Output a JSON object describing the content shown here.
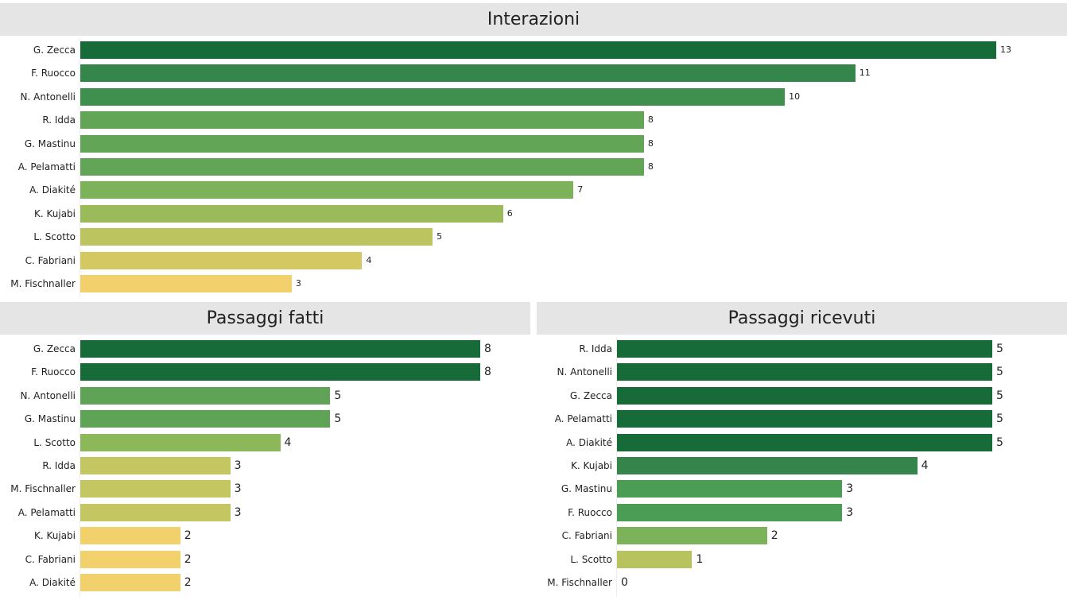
{
  "chart_data": [
    {
      "id": "top",
      "type": "bar",
      "orientation": "horizontal",
      "title": "Interazioni",
      "categories": [
        "G. Zecca",
        "F. Ruocco",
        "N. Antonelli",
        "R. Idda",
        "G. Mastinu",
        "A. Pelamatti",
        "A. Diakité",
        "K. Kujabi",
        "L. Scotto",
        "C. Fabriani",
        "M. Fischnaller"
      ],
      "values": [
        13,
        11,
        10,
        8,
        8,
        8,
        7,
        6,
        5,
        4,
        3
      ],
      "colors": [
        "#166b38",
        "#35864a",
        "#3f8f4e",
        "#63a556",
        "#63a556",
        "#63a556",
        "#7cb25a",
        "#9bbb5b",
        "#bbc45f",
        "#d3c862",
        "#f2d06b"
      ]
    },
    {
      "id": "left",
      "type": "bar",
      "orientation": "horizontal",
      "title": "Passaggi fatti",
      "categories": [
        "G. Zecca",
        "F. Ruocco",
        "N. Antonelli",
        "G. Mastinu",
        "L. Scotto",
        "R. Idda",
        "M. Fischnaller",
        "A. Pelamatti",
        "K. Kujabi",
        "C. Fabriani",
        "A. Diakité"
      ],
      "values": [
        8,
        8,
        5,
        5,
        4,
        3,
        3,
        3,
        2,
        2,
        2
      ],
      "colors": [
        "#166b38",
        "#166b38",
        "#5fa456",
        "#5fa456",
        "#8db85a",
        "#c4c662",
        "#c4c662",
        "#c4c662",
        "#f2d06b",
        "#f2d06b",
        "#f2d06b"
      ]
    },
    {
      "id": "right",
      "type": "bar",
      "orientation": "horizontal",
      "title": "Passaggi ricevuti",
      "categories": [
        "R. Idda",
        "N. Antonelli",
        "G. Zecca",
        "A. Pelamatti",
        "A. Diakité",
        "K. Kujabi",
        "G. Mastinu",
        "F. Ruocco",
        "C. Fabriani",
        "L. Scotto",
        "M. Fischnaller"
      ],
      "values": [
        5,
        5,
        5,
        5,
        5,
        4,
        3,
        3,
        2,
        1,
        0
      ],
      "colors": [
        "#166b38",
        "#166b38",
        "#166b38",
        "#166b38",
        "#166b38",
        "#35844b",
        "#4b9d55",
        "#4b9d55",
        "#7cb25a",
        "#b8c35f",
        "#f2d06b"
      ]
    }
  ]
}
